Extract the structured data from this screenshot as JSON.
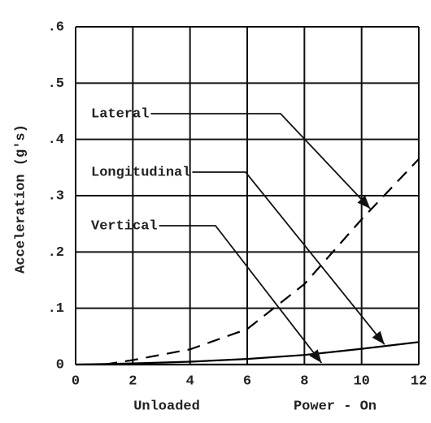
{
  "chart_data": {
    "type": "line",
    "y_label": "Acceleration (g's)",
    "x_labels": [
      "Unloaded",
      "Power - On"
    ],
    "x": [
      0,
      1,
      2,
      4,
      6,
      8,
      10,
      12
    ],
    "series": [
      {
        "name": "Lateral",
        "color": "#000000",
        "style": "dashed",
        "values": [
          null,
          0,
          0.008,
          0.027,
          0.063,
          0.143,
          0.258,
          0.365
        ]
      },
      {
        "name": "Longitudinal",
        "color": "#000000",
        "style": "solid",
        "values": [
          0,
          0.001,
          0.002,
          0.005,
          0.01,
          0.017,
          0.028,
          0.04
        ]
      },
      {
        "name": "Vertical",
        "color": "#000000",
        "style": "solid",
        "values": [
          0,
          0,
          0,
          0,
          0,
          0,
          0,
          0
        ]
      }
    ],
    "xlim": [
      0,
      12
    ],
    "xticks": [
      0,
      2,
      4,
      6,
      8,
      10,
      12
    ],
    "ylim": [
      0,
      0.6
    ],
    "yticks": [
      0,
      {
        "value": 0.1,
        "label": ".1"
      },
      {
        "value": 0.2,
        "label": ".2"
      },
      {
        "value": 0.3,
        "label": ".3"
      },
      {
        "value": 0.4,
        "label": ".4"
      },
      {
        "value": 0.5,
        "label": ".5"
      },
      {
        "value": 0.6,
        "label": ".6"
      }
    ],
    "grid": true
  }
}
